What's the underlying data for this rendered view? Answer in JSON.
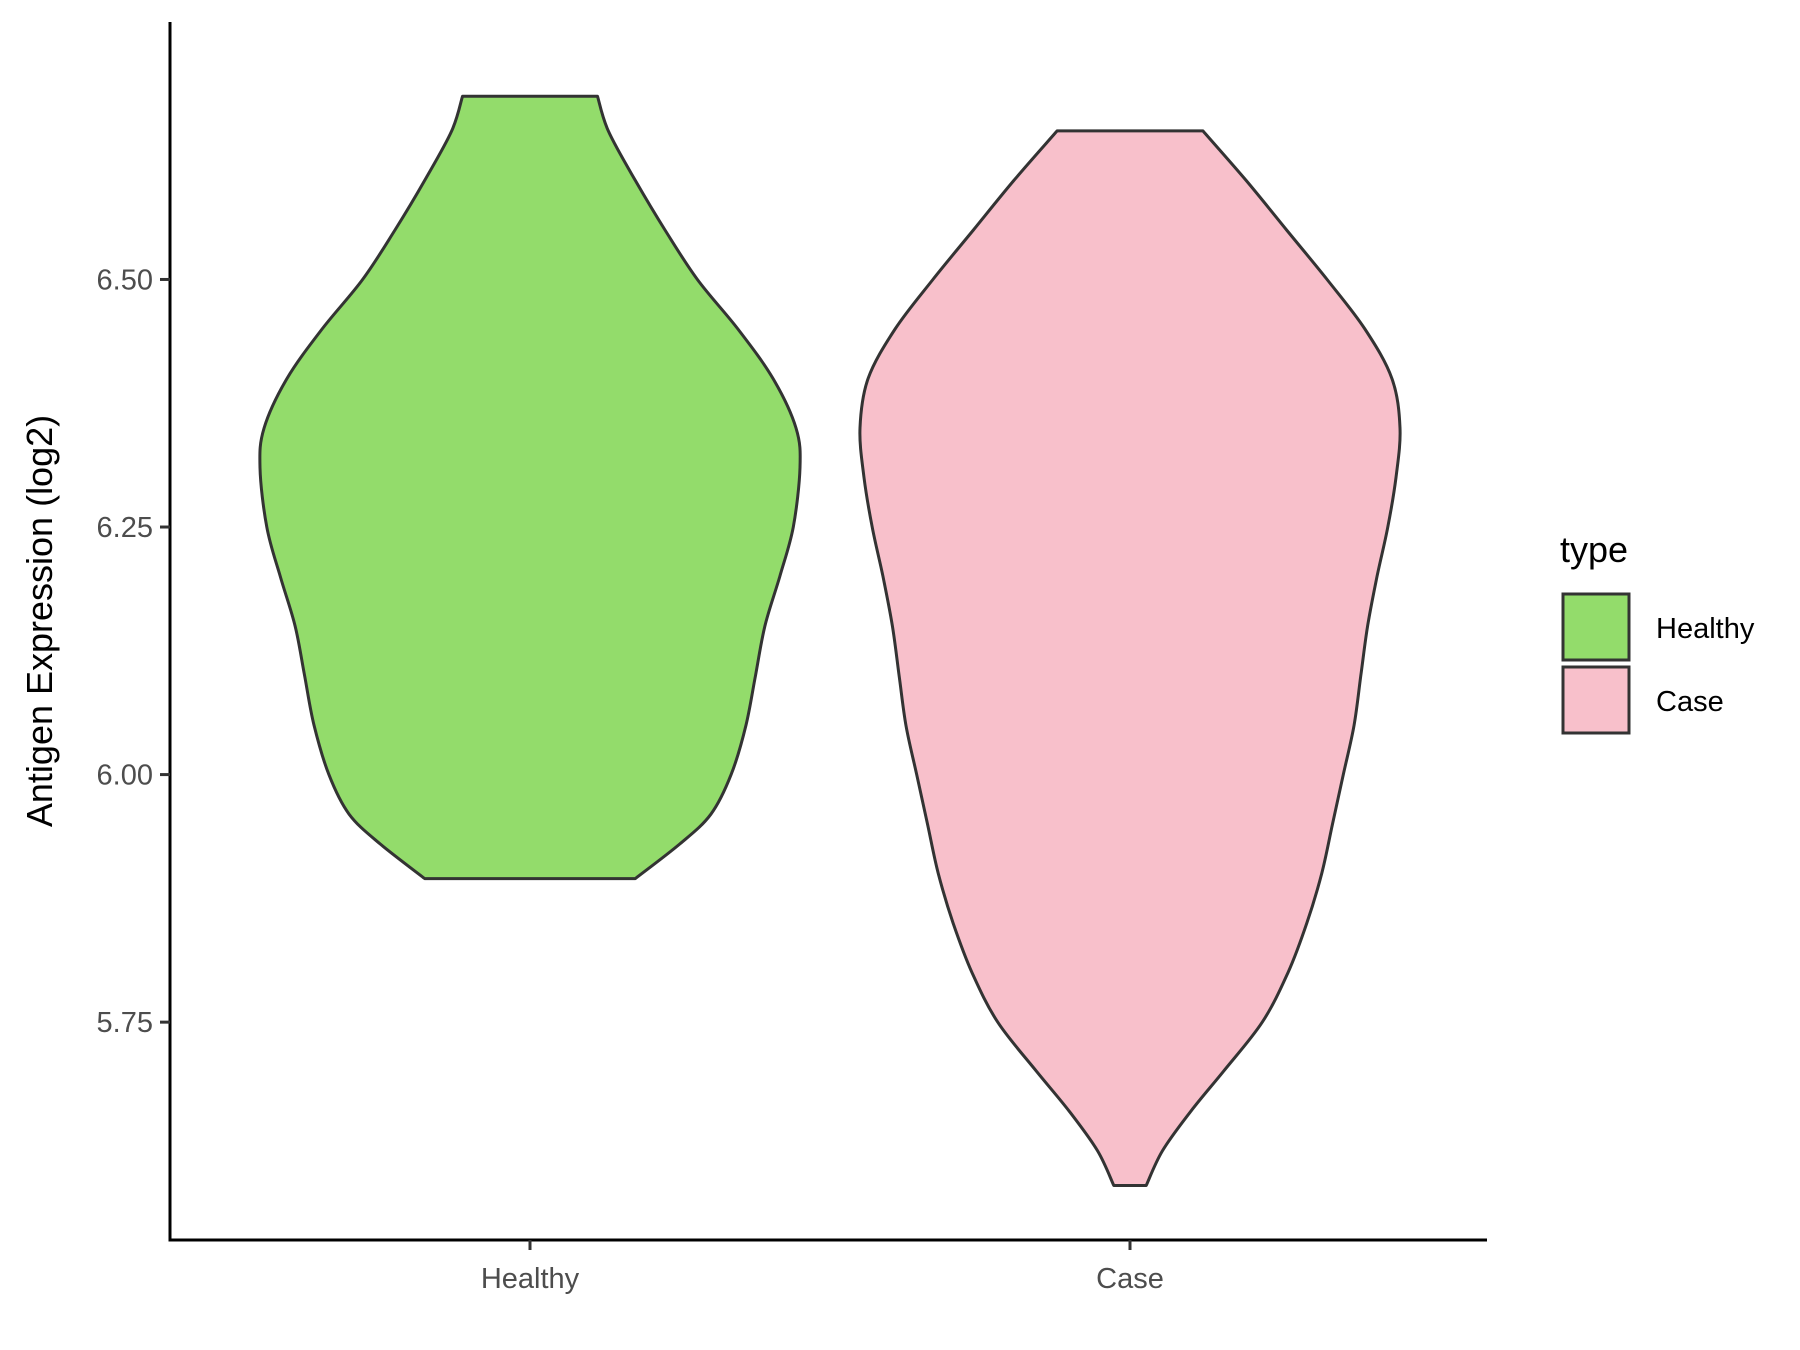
{
  "chart_data": {
    "type": "violin",
    "ylabel": "Antigen Expression (log2)",
    "xlabel": "",
    "ylim": [
      5.53,
      6.76
    ],
    "yticks": [
      "5.75",
      "6.00",
      "6.25",
      "6.50"
    ],
    "categories": [
      "Healthy",
      "Case"
    ],
    "grid": false,
    "legend": {
      "title": "type",
      "placement": "right",
      "entries": [
        "Healthy",
        "Case"
      ]
    },
    "series": [
      {
        "name": "Healthy",
        "color": "#93DC6B",
        "min": 5.895,
        "max": 6.685,
        "density_profile": [
          [
            5.895,
            0.39
          ],
          [
            5.93,
            0.555
          ],
          [
            5.96,
            0.67
          ],
          [
            6.0,
            0.745
          ],
          [
            6.05,
            0.8
          ],
          [
            6.1,
            0.835
          ],
          [
            6.15,
            0.87
          ],
          [
            6.2,
            0.925
          ],
          [
            6.25,
            0.975
          ],
          [
            6.31,
            1.0
          ],
          [
            6.35,
            0.985
          ],
          [
            6.4,
            0.9
          ],
          [
            6.45,
            0.77
          ],
          [
            6.5,
            0.62
          ],
          [
            6.55,
            0.5
          ],
          [
            6.6,
            0.39
          ],
          [
            6.65,
            0.29
          ],
          [
            6.685,
            0.25
          ]
        ]
      },
      {
        "name": "Case",
        "color": "#F8C0CB",
        "min": 5.585,
        "max": 6.65,
        "density_profile": [
          [
            5.585,
            0.06
          ],
          [
            5.62,
            0.12
          ],
          [
            5.66,
            0.225
          ],
          [
            5.7,
            0.345
          ],
          [
            5.75,
            0.49
          ],
          [
            5.8,
            0.585
          ],
          [
            5.85,
            0.655
          ],
          [
            5.9,
            0.71
          ],
          [
            5.95,
            0.75
          ],
          [
            6.0,
            0.79
          ],
          [
            6.05,
            0.83
          ],
          [
            6.1,
            0.855
          ],
          [
            6.15,
            0.88
          ],
          [
            6.2,
            0.915
          ],
          [
            6.25,
            0.955
          ],
          [
            6.3,
            0.985
          ],
          [
            6.35,
            1.0
          ],
          [
            6.4,
            0.97
          ],
          [
            6.45,
            0.87
          ],
          [
            6.5,
            0.73
          ],
          [
            6.55,
            0.58
          ],
          [
            6.6,
            0.43
          ],
          [
            6.65,
            0.27
          ]
        ]
      }
    ]
  }
}
